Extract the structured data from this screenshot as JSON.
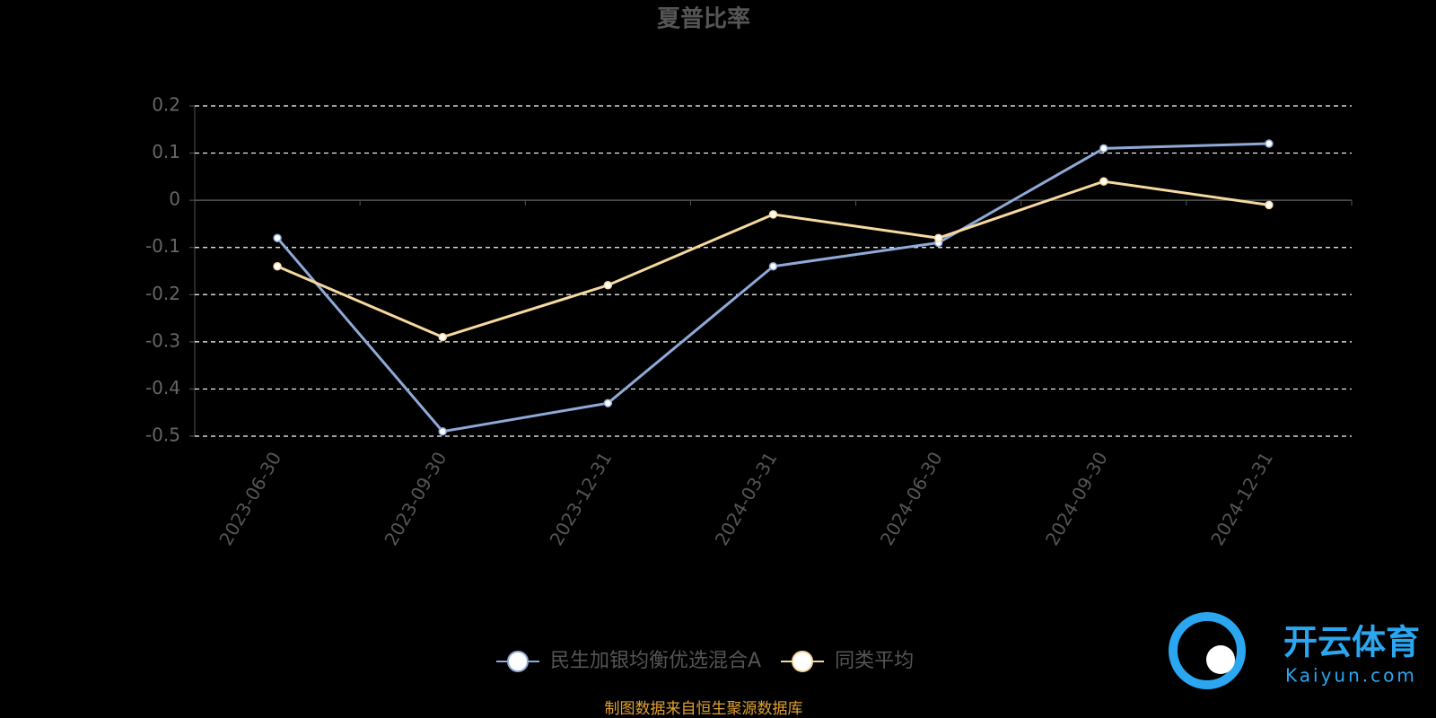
{
  "chart_data": {
    "type": "line",
    "title": "夏普比率",
    "categories": [
      "2023-06-30",
      "2023-09-30",
      "2023-12-31",
      "2024-03-31",
      "2024-06-30",
      "2024-09-30",
      "2024-12-31"
    ],
    "series": [
      {
        "name": "民生加银均衡优选混合A",
        "color": "#8fa9d8",
        "values": [
          -0.08,
          -0.49,
          -0.43,
          -0.14,
          -0.09,
          0.11,
          0.12
        ]
      },
      {
        "name": "同类平均",
        "color": "#f7d9a0",
        "values": [
          -0.14,
          -0.29,
          -0.18,
          -0.03,
          -0.08,
          0.04,
          -0.01
        ]
      }
    ],
    "ylim": [
      -0.5,
      0.2
    ],
    "yticks": [
      0.2,
      0.1,
      0,
      -0.1,
      -0.2,
      -0.3,
      -0.4,
      -0.5
    ],
    "grid": true,
    "legend": "bottom",
    "source": "制图数据来自恒生聚源数据库",
    "watermark": {
      "title": "开云体育",
      "url": "Kaiyun.com"
    }
  }
}
